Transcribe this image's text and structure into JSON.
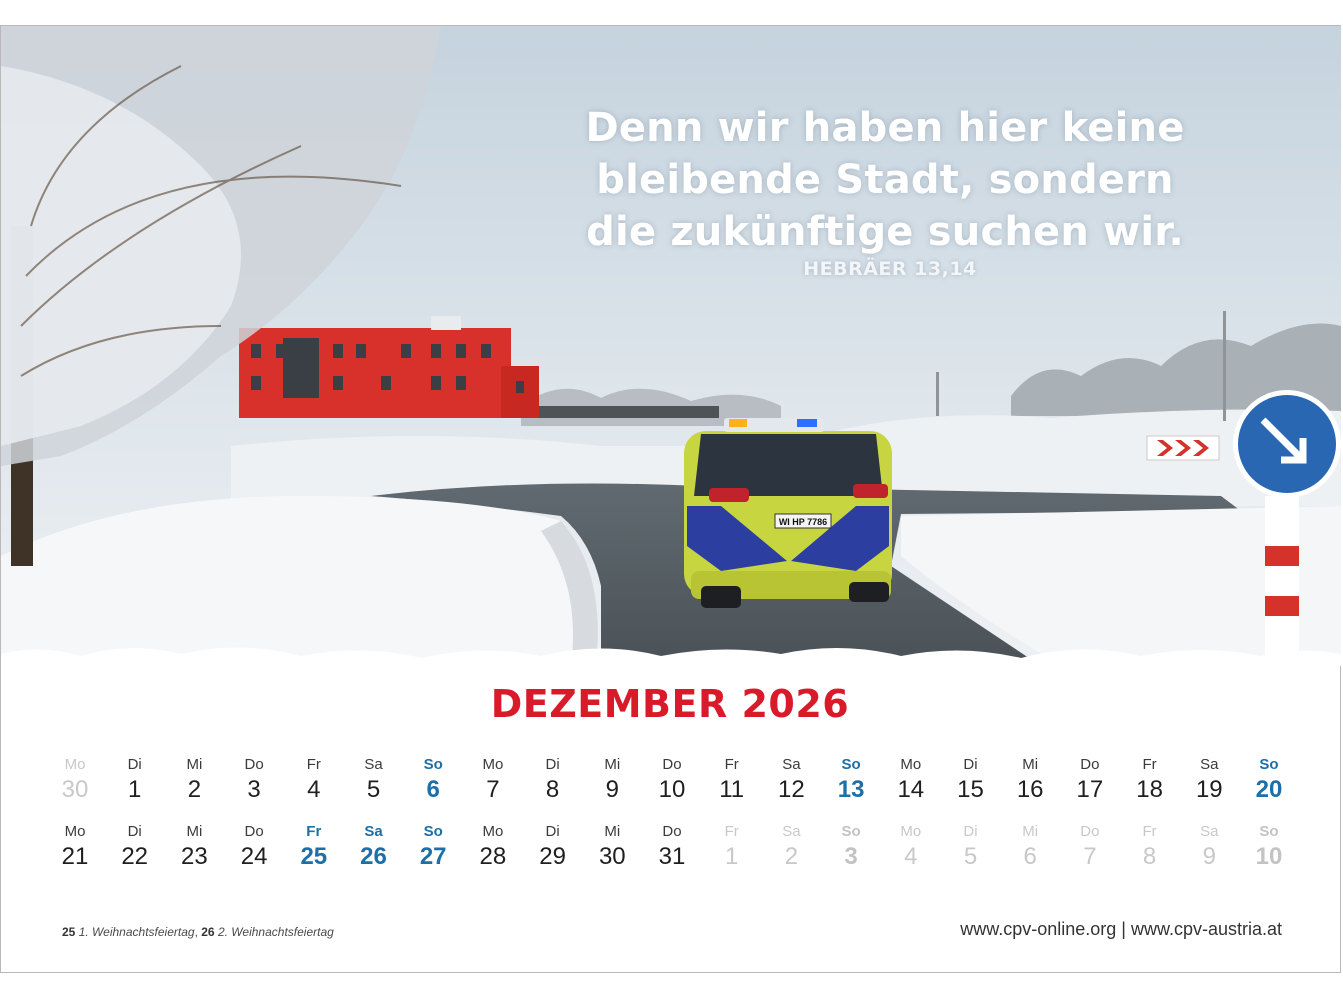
{
  "colors": {
    "title_red": "#d91a2a",
    "holiday_blue": "#1d6fa8",
    "text_dark": "#1f1f1f",
    "muted_gray": "#c8c8c8"
  },
  "quote": {
    "lines": [
      "Denn wir haben hier keine",
      "bleibende Stadt, sondern",
      "die zukünftige suchen wir."
    ],
    "reference": "HEBRÄER 13,14"
  },
  "month_title": "DEZEMBER 2026",
  "calendar": {
    "rows": [
      [
        {
          "wd": "Mo",
          "d": "30",
          "kind": "other"
        },
        {
          "wd": "Di",
          "d": "1",
          "kind": "normal"
        },
        {
          "wd": "Mi",
          "d": "2",
          "kind": "normal"
        },
        {
          "wd": "Do",
          "d": "3",
          "kind": "normal"
        },
        {
          "wd": "Fr",
          "d": "4",
          "kind": "normal"
        },
        {
          "wd": "Sa",
          "d": "5",
          "kind": "normal"
        },
        {
          "wd": "So",
          "d": "6",
          "kind": "holiday"
        },
        {
          "wd": "Mo",
          "d": "7",
          "kind": "normal"
        },
        {
          "wd": "Di",
          "d": "8",
          "kind": "normal"
        },
        {
          "wd": "Mi",
          "d": "9",
          "kind": "normal"
        },
        {
          "wd": "Do",
          "d": "10",
          "kind": "normal"
        },
        {
          "wd": "Fr",
          "d": "11",
          "kind": "normal"
        },
        {
          "wd": "Sa",
          "d": "12",
          "kind": "normal"
        },
        {
          "wd": "So",
          "d": "13",
          "kind": "holiday"
        },
        {
          "wd": "Mo",
          "d": "14",
          "kind": "normal"
        },
        {
          "wd": "Di",
          "d": "15",
          "kind": "normal"
        },
        {
          "wd": "Mi",
          "d": "16",
          "kind": "normal"
        },
        {
          "wd": "Do",
          "d": "17",
          "kind": "normal"
        },
        {
          "wd": "Fr",
          "d": "18",
          "kind": "normal"
        },
        {
          "wd": "Sa",
          "d": "19",
          "kind": "normal"
        },
        {
          "wd": "So",
          "d": "20",
          "kind": "holiday"
        }
      ],
      [
        {
          "wd": "Mo",
          "d": "21",
          "kind": "normal"
        },
        {
          "wd": "Di",
          "d": "22",
          "kind": "normal"
        },
        {
          "wd": "Mi",
          "d": "23",
          "kind": "normal"
        },
        {
          "wd": "Do",
          "d": "24",
          "kind": "normal"
        },
        {
          "wd": "Fr",
          "d": "25",
          "kind": "holiday"
        },
        {
          "wd": "Sa",
          "d": "26",
          "kind": "holiday"
        },
        {
          "wd": "So",
          "d": "27",
          "kind": "holiday"
        },
        {
          "wd": "Mo",
          "d": "28",
          "kind": "normal"
        },
        {
          "wd": "Di",
          "d": "29",
          "kind": "normal"
        },
        {
          "wd": "Mi",
          "d": "30",
          "kind": "normal"
        },
        {
          "wd": "Do",
          "d": "31",
          "kind": "normal"
        },
        {
          "wd": "Fr",
          "d": "1",
          "kind": "other"
        },
        {
          "wd": "Sa",
          "d": "2",
          "kind": "other"
        },
        {
          "wd": "So",
          "d": "3",
          "kind": "other-holiday"
        },
        {
          "wd": "Mo",
          "d": "4",
          "kind": "other"
        },
        {
          "wd": "Di",
          "d": "5",
          "kind": "other"
        },
        {
          "wd": "Mi",
          "d": "6",
          "kind": "other"
        },
        {
          "wd": "Do",
          "d": "7",
          "kind": "other"
        },
        {
          "wd": "Fr",
          "d": "8",
          "kind": "other"
        },
        {
          "wd": "Sa",
          "d": "9",
          "kind": "other"
        },
        {
          "wd": "So",
          "d": "10",
          "kind": "other-holiday"
        }
      ]
    ]
  },
  "footnote": {
    "d1": "25",
    "t1": "1. Weihnachtsfeiertag",
    "sep": ",",
    "d2": "26",
    "t2": "2. Weihnachtsfeiertag"
  },
  "weblinks": "www.cpv-online.org | www.cpv-austria.at",
  "photo": {
    "license_plate": "WI HP 7786"
  }
}
